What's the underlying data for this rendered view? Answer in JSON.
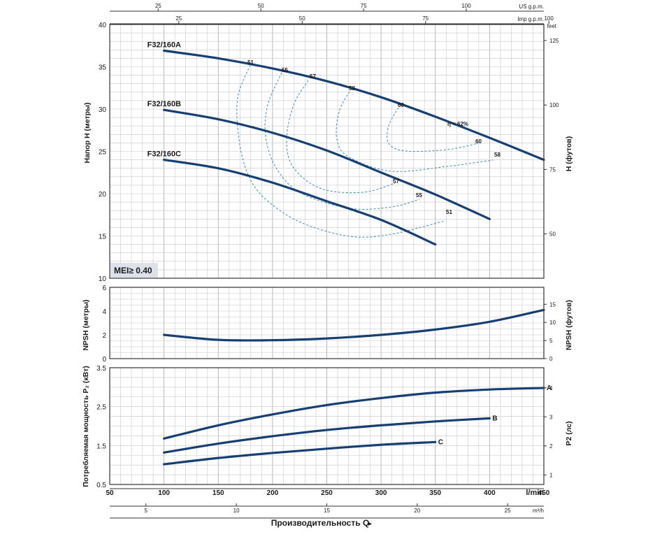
{
  "axes": {
    "top_us": {
      "unit": "US g.p.m.",
      "ticks": [
        "25",
        "50",
        "75",
        "100"
      ]
    },
    "top_imp": {
      "unit": "Imp g.p.m.",
      "ticks": [
        "25",
        "50",
        "75",
        "100"
      ]
    },
    "bottom_lmin": {
      "unit": "l/min",
      "ticks": [
        "50",
        "100",
        "150",
        "200",
        "250",
        "300",
        "350",
        "400",
        "450"
      ]
    },
    "bottom_m3h": {
      "unit": "m³/h",
      "ticks": [
        "5",
        "10",
        "15",
        "20",
        "25"
      ]
    },
    "xlabel": "Производительность Q",
    "arrow": "▸"
  },
  "chart_data": [
    {
      "type": "line",
      "id": "head",
      "ylabel": "Напор H (метры)",
      "ylabel_right": "H (футов)",
      "right_unit": "feet",
      "ylim": [
        10,
        40
      ],
      "yticks": [
        "10",
        "15",
        "20",
        "25",
        "30",
        "35",
        "40"
      ],
      "right_ticks": [
        "50",
        "75",
        "100",
        "125"
      ],
      "xlim": [
        50,
        450
      ],
      "series": [
        {
          "name": "F32/160A",
          "x": [
            100,
            150,
            200,
            250,
            300,
            350,
            400,
            450
          ],
          "y": [
            36.9,
            36.0,
            34.8,
            33.3,
            31.4,
            29.1,
            26.6,
            24.0
          ]
        },
        {
          "name": "F32/160B",
          "x": [
            100,
            150,
            200,
            250,
            300,
            350,
            400
          ],
          "y": [
            29.9,
            28.8,
            27.2,
            25.1,
            22.5,
            19.9,
            17.0
          ]
        },
        {
          "name": "F32/160C",
          "x": [
            100,
            150,
            200,
            250,
            300,
            350
          ],
          "y": [
            24.0,
            23.0,
            21.3,
            19.1,
            16.9,
            14.0
          ]
        }
      ],
      "efficiency_labels": [
        "51",
        "55",
        "57",
        "58",
        "60",
        "η = 62%",
        "60",
        "58",
        "57",
        "55",
        "51"
      ],
      "badge": "MEI≥ 0.40"
    },
    {
      "type": "line",
      "id": "npsh",
      "ylabel": "NPSH (метры)",
      "ylabel_right": "NPSH (футов)",
      "ylim": [
        0,
        6
      ],
      "yticks": [
        "0",
        "2",
        "4",
        "6"
      ],
      "right_ticks": [
        "0",
        "5",
        "10",
        "15"
      ],
      "series": [
        {
          "name": "",
          "x": [
            100,
            150,
            200,
            250,
            300,
            350,
            400,
            450
          ],
          "y": [
            2.0,
            1.58,
            1.55,
            1.7,
            2.0,
            2.45,
            3.1,
            4.1
          ]
        }
      ]
    },
    {
      "type": "line",
      "id": "power",
      "ylabel": "Потребляемая мощность P₂ (кВт)",
      "ylabel_right": "P2 (лс)",
      "ylim": [
        0.5,
        3.5
      ],
      "yticks": [
        "0.5",
        "1.5",
        "2.5",
        "3.5"
      ],
      "right_ticks": [
        "1",
        "2",
        "3",
        "4"
      ],
      "series": [
        {
          "name": "A",
          "x": [
            100,
            150,
            200,
            250,
            300,
            350,
            400,
            450
          ],
          "y": [
            1.68,
            2.02,
            2.3,
            2.54,
            2.72,
            2.86,
            2.94,
            2.98
          ]
        },
        {
          "name": "B",
          "x": [
            100,
            150,
            200,
            250,
            300,
            350,
            400
          ],
          "y": [
            1.32,
            1.55,
            1.74,
            1.9,
            2.02,
            2.12,
            2.2
          ]
        },
        {
          "name": "C",
          "x": [
            100,
            150,
            200,
            250,
            300,
            350
          ],
          "y": [
            1.02,
            1.18,
            1.31,
            1.42,
            1.52,
            1.59
          ]
        }
      ]
    }
  ]
}
